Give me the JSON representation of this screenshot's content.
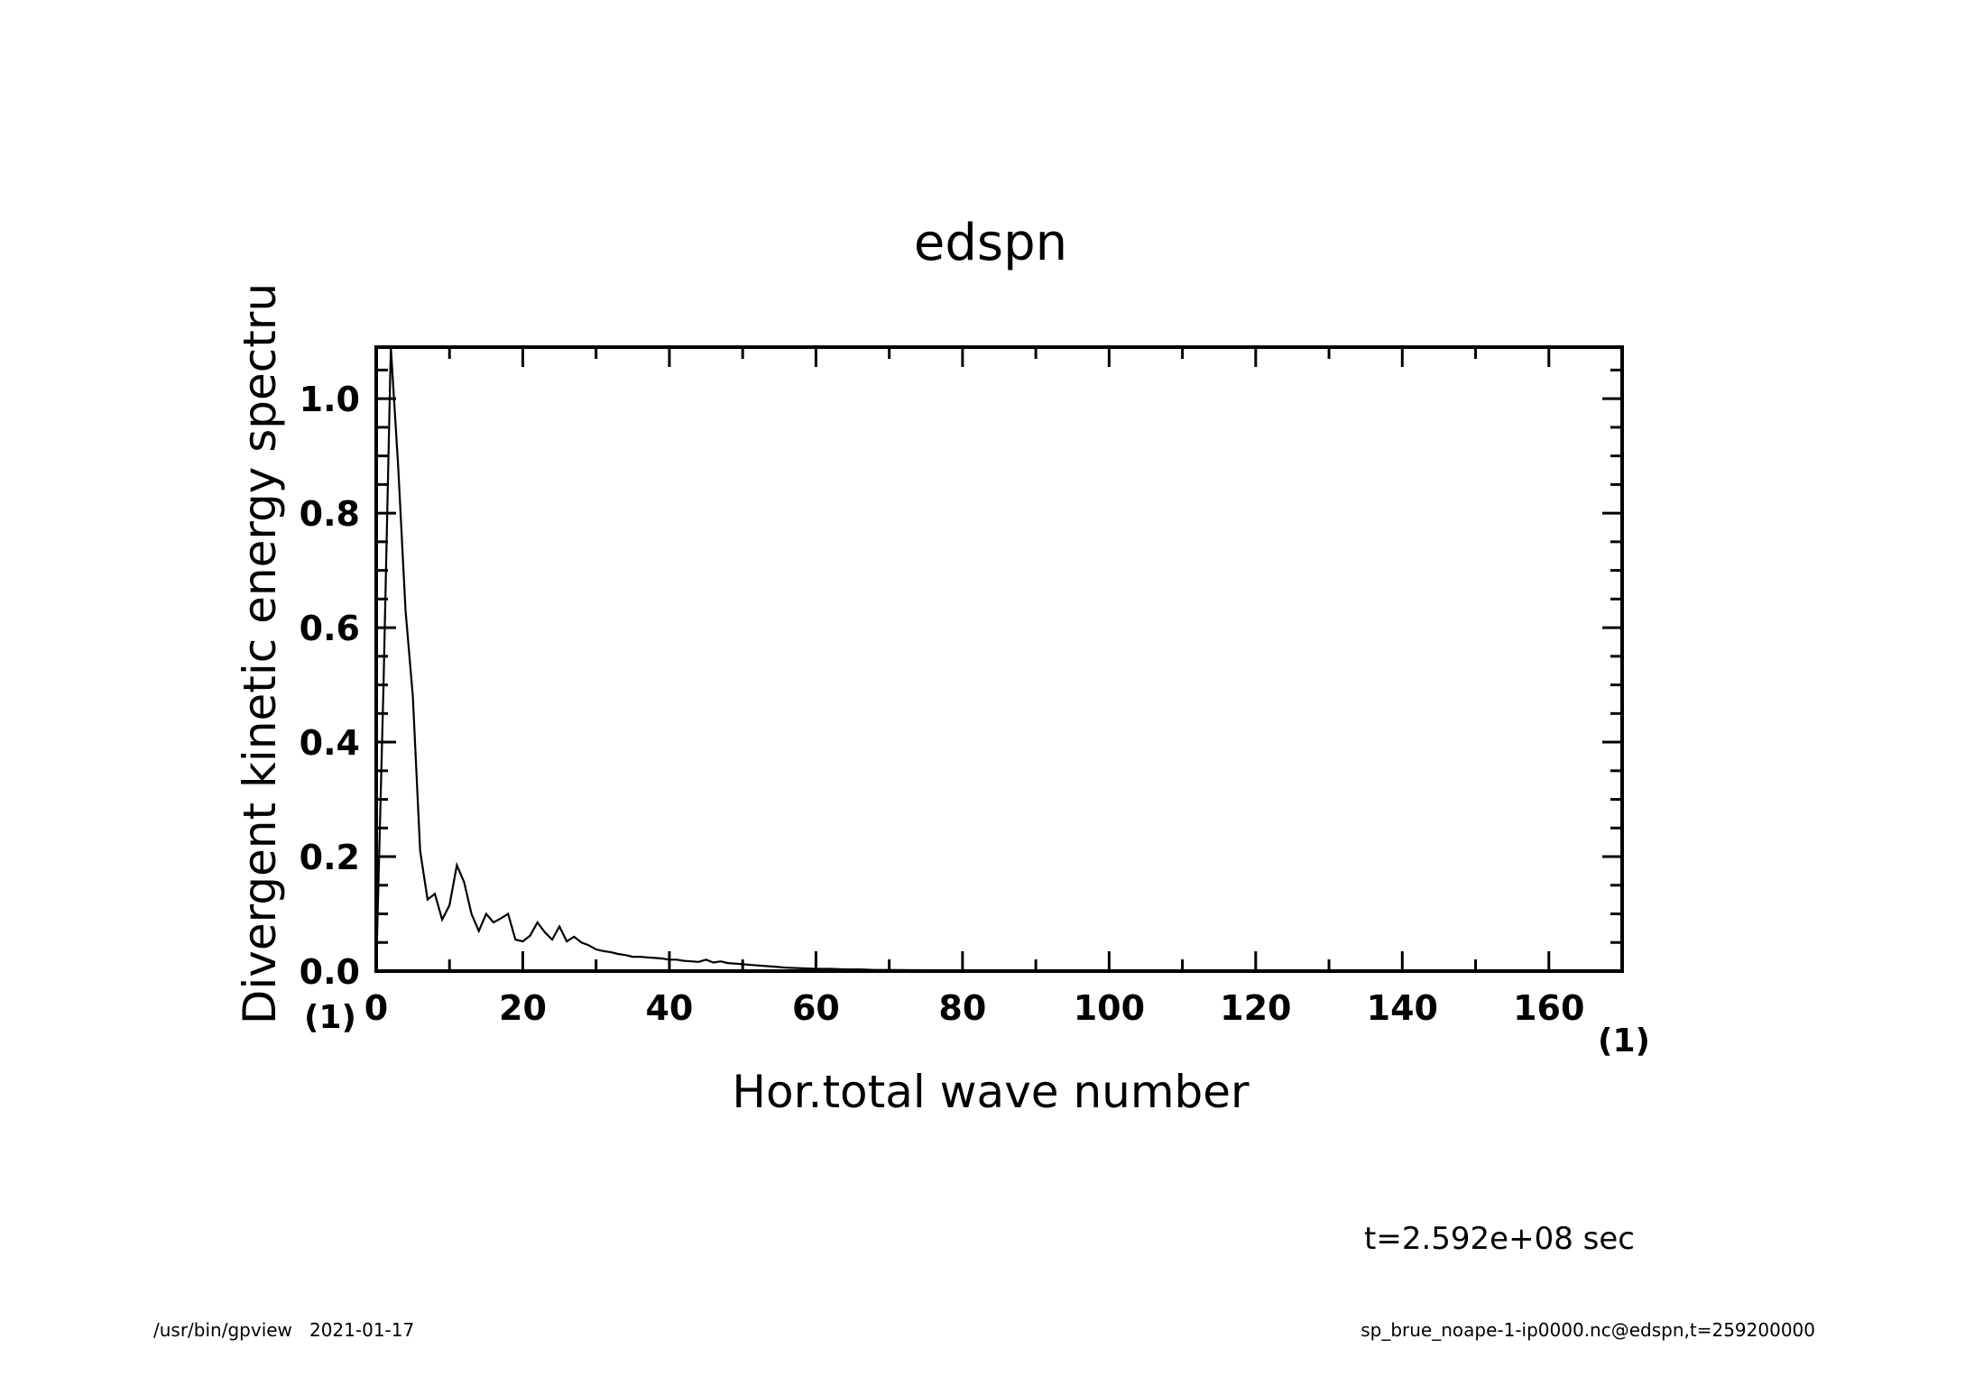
{
  "chart_data": {
    "type": "line",
    "title": "edspn",
    "xlabel": "Hor.total wave number",
    "ylabel": "Divergent kinetic energy spectru",
    "x_unit": "(1)",
    "y_unit": "(1)",
    "xlim": [
      0,
      170
    ],
    "ylim": [
      0,
      1.09
    ],
    "x_ticks": [
      0,
      20,
      40,
      60,
      80,
      100,
      120,
      140,
      160
    ],
    "x_tick_labels": [
      "0",
      "20",
      "40",
      "60",
      "80",
      "100",
      "120",
      "140",
      "160"
    ],
    "y_ticks": [
      0.0,
      0.2,
      0.4,
      0.6,
      0.8,
      1.0
    ],
    "y_tick_labels": [
      "0.0",
      "0.2",
      "0.4",
      "0.6",
      "0.8",
      "1.0"
    ],
    "grid": false,
    "series": [
      {
        "x": [
          0,
          1,
          2,
          3,
          4,
          5,
          6,
          7,
          8,
          9,
          10,
          11,
          12,
          13,
          14,
          15,
          16,
          17,
          18,
          19,
          20,
          21,
          22,
          23,
          24,
          25,
          26,
          27,
          28,
          29,
          30,
          31,
          32,
          33,
          34,
          35,
          36,
          37,
          38,
          39,
          40,
          41,
          42,
          43,
          44,
          45,
          46,
          47,
          48,
          49,
          50,
          52,
          54,
          56,
          58,
          60,
          62,
          64,
          66,
          68,
          70,
          75,
          80,
          90,
          100,
          120,
          140,
          160,
          170
        ],
        "y": [
          0.0,
          0.5,
          1.09,
          0.88,
          0.63,
          0.48,
          0.21,
          0.125,
          0.135,
          0.09,
          0.115,
          0.185,
          0.155,
          0.1,
          0.07,
          0.1,
          0.085,
          0.092,
          0.1,
          0.055,
          0.052,
          0.062,
          0.085,
          0.068,
          0.055,
          0.078,
          0.052,
          0.06,
          0.05,
          0.045,
          0.038,
          0.035,
          0.033,
          0.03,
          0.028,
          0.025,
          0.025,
          0.024,
          0.023,
          0.022,
          0.02,
          0.02,
          0.018,
          0.017,
          0.016,
          0.02,
          0.015,
          0.017,
          0.014,
          0.013,
          0.012,
          0.01,
          0.008,
          0.006,
          0.005,
          0.004,
          0.004,
          0.003,
          0.003,
          0.002,
          0.002,
          0.0015,
          0.001,
          0.0005,
          0.0003,
          0.0002,
          0.0001,
          0.0001,
          0.0
        ]
      }
    ]
  },
  "annotations": {
    "time": "t=2.592e+08 sec",
    "footer_left": "/usr/bin/gpview   2021-01-17",
    "footer_right": "sp_brue_noape-1-ip0000.nc@edspn,t=259200000"
  }
}
